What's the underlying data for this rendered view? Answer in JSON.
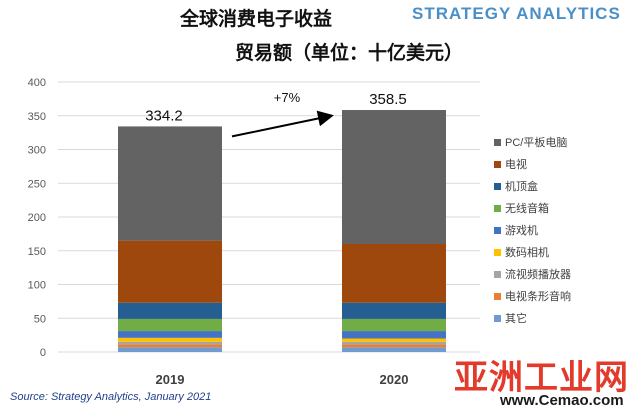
{
  "title": {
    "line1": "全球消费电子收益",
    "line2": "贸易额（单位：十亿美元）"
  },
  "brand": "STRATEGY ANALYTICS",
  "source": "Source: Strategy Analytics, January 2021",
  "watermark": {
    "name": "亚洲工业网",
    "url": "www.Cemao.com"
  },
  "chart_data": {
    "type": "bar",
    "stacked": true,
    "categories": [
      "2019",
      "2020"
    ],
    "totals": [
      334.2,
      358.5
    ],
    "total_labels": [
      "334.2",
      "358.5"
    ],
    "growth_label": "+7%",
    "ylim": [
      0,
      400
    ],
    "yticks": [
      0,
      50,
      100,
      150,
      200,
      250,
      300,
      350,
      400
    ],
    "grid": true,
    "legend_position": "right",
    "series": [
      {
        "name": "其它",
        "color": "#6f9bd0",
        "values": [
          7,
          7
        ]
      },
      {
        "name": "电视条形音响",
        "color": "#ed7d31",
        "values": [
          4,
          4
        ]
      },
      {
        "name": "流视频播放器",
        "color": "#a5a5a5",
        "values": [
          4,
          4
        ]
      },
      {
        "name": "数码相机",
        "color": "#ffc000",
        "values": [
          6,
          5
        ]
      },
      {
        "name": "游戏机",
        "color": "#4472c4",
        "values": [
          10,
          11
        ]
      },
      {
        "name": "无线音箱",
        "color": "#70ad47",
        "values": [
          18,
          18
        ]
      },
      {
        "name": "机顶盒",
        "color": "#255e91",
        "values": [
          24,
          24
        ]
      },
      {
        "name": "电视",
        "color": "#9e480e",
        "values": [
          92,
          87
        ]
      },
      {
        "name": "PC/平板电脑",
        "color": "#636363",
        "values": [
          169.2,
          198.5
        ]
      }
    ]
  }
}
